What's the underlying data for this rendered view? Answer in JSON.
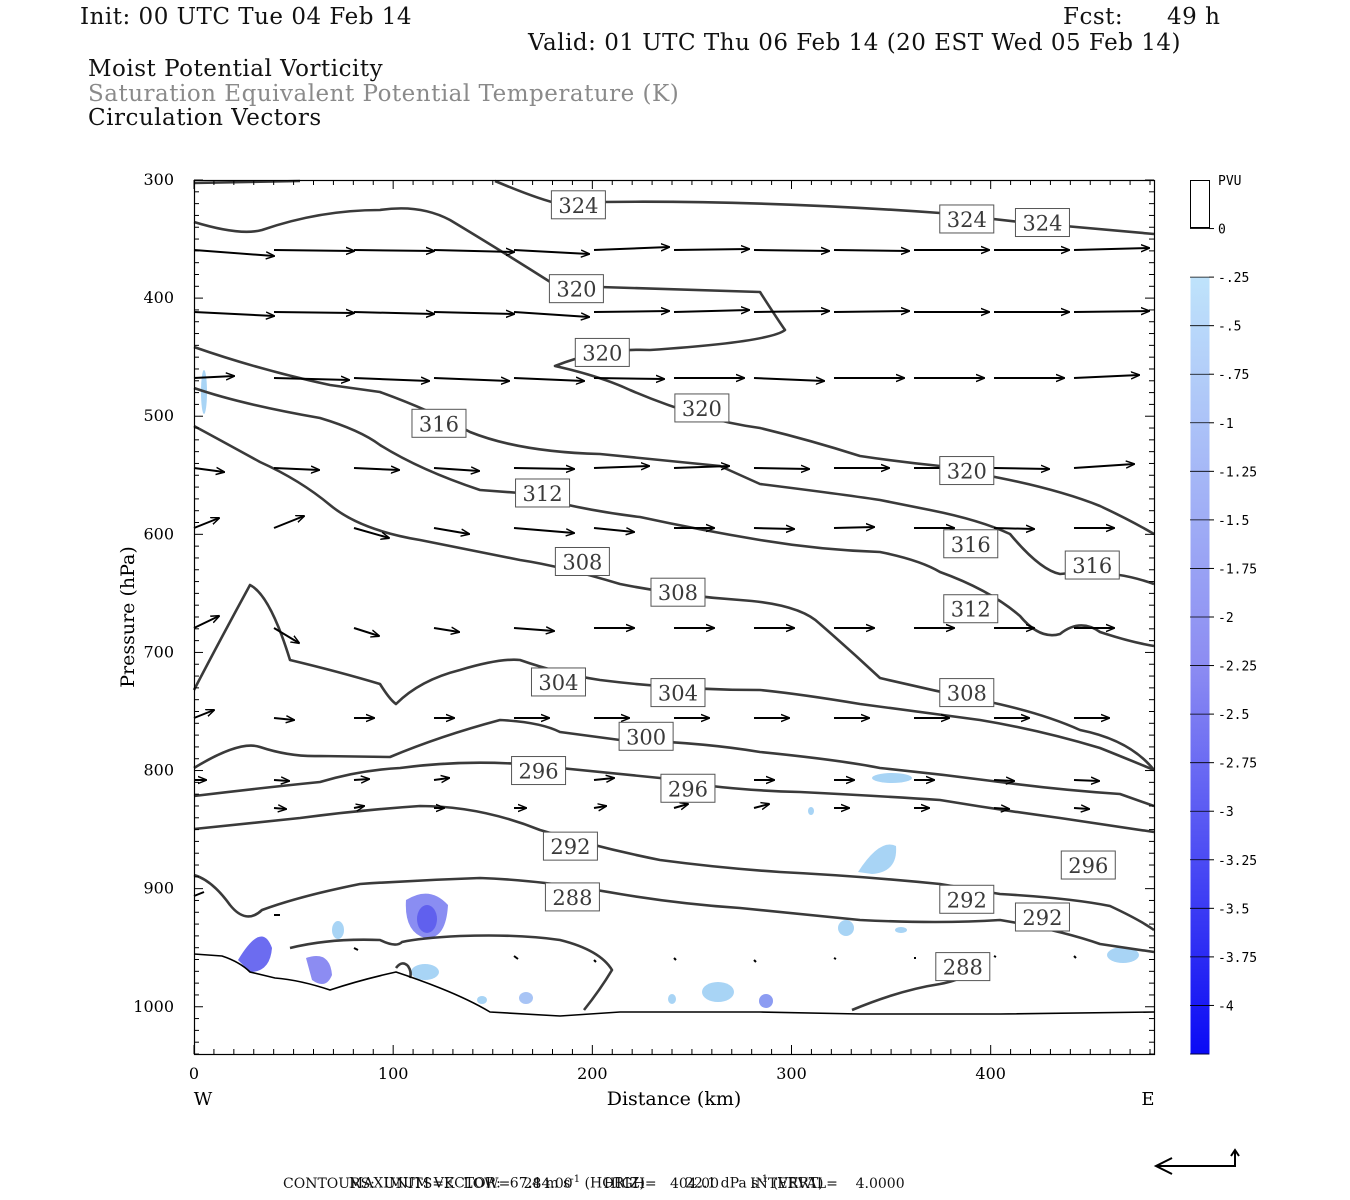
{
  "header": {
    "init": "Init: 00 UTC Tue 04 Feb 14",
    "fcst_label": "Fcst:",
    "fcst_value": "49 h",
    "valid": "Valid: 01 UTC Thu 06 Feb 14 (20 EST Wed 05 Feb 14)",
    "field1": "Moist Potential Vorticity",
    "field2": "Saturation Equivalent Potential Temperature (K)",
    "field3": "Circulation Vectors"
  },
  "colors": {
    "contour": "#3a3a3a",
    "field2_text": "#8a8a8a",
    "shade_light": "#a8d4f5",
    "shade_dark": "#3d3ef0"
  },
  "chart_data": {
    "type": "contour-cross-section",
    "xlabel": "Distance (km)",
    "ylabel": "Pressure (hPa)",
    "xlim": [
      0,
      482
    ],
    "ylim_hPa": [
      1040,
      300
    ],
    "x_ticks": [
      0,
      100,
      200,
      300,
      400
    ],
    "y_ticks": [
      300,
      400,
      500,
      600,
      700,
      800,
      900,
      1000
    ],
    "x_end_labels": {
      "left": "W",
      "right": "E"
    },
    "colorbar": {
      "unit": "PVU",
      "levels": [
        "0",
        "-.25",
        "-.5",
        "-.75",
        "-1",
        "-1.25",
        "-1.5",
        "-1.75",
        "-2",
        "-2.25",
        "-2.5",
        "-2.75",
        "-3",
        "-3.25",
        "-3.5",
        "-3.75",
        "-4"
      ]
    },
    "contour_labels": [
      {
        "value": "324",
        "x": 193,
        "p": 321
      },
      {
        "value": "324",
        "x": 388,
        "p": 333
      },
      {
        "value": "324",
        "x": 426,
        "p": 336
      },
      {
        "value": "320",
        "x": 192,
        "p": 392
      },
      {
        "value": "320",
        "x": 205,
        "p": 446
      },
      {
        "value": "320",
        "x": 255,
        "p": 493
      },
      {
        "value": "320",
        "x": 388,
        "p": 546
      },
      {
        "value": "316",
        "x": 123,
        "p": 506
      },
      {
        "value": "316",
        "x": 390,
        "p": 608
      },
      {
        "value": "316",
        "x": 451,
        "p": 626
      },
      {
        "value": "312",
        "x": 175,
        "p": 565
      },
      {
        "value": "312",
        "x": 390,
        "p": 663
      },
      {
        "value": "308",
        "x": 195,
        "p": 623
      },
      {
        "value": "308",
        "x": 243,
        "p": 649
      },
      {
        "value": "308",
        "x": 388,
        "p": 734
      },
      {
        "value": "304",
        "x": 183,
        "p": 725
      },
      {
        "value": "304",
        "x": 243,
        "p": 734
      },
      {
        "value": "300",
        "x": 227,
        "p": 771
      },
      {
        "value": "296",
        "x": 173,
        "p": 800
      },
      {
        "value": "296",
        "x": 248,
        "p": 815
      },
      {
        "value": "296",
        "x": 449,
        "p": 880
      },
      {
        "value": "292",
        "x": 189,
        "p": 864
      },
      {
        "value": "292",
        "x": 388,
        "p": 909
      },
      {
        "value": "292",
        "x": 426,
        "p": 924
      },
      {
        "value": "288",
        "x": 190,
        "p": 907
      },
      {
        "value": "288",
        "x": 386,
        "p": 966
      }
    ]
  },
  "footer": {
    "max_vector_label": "MAXIMUM VECTOR:",
    "horiz_value": "67.4",
    "horiz_unit": "m s",
    "sup": "-1",
    "horiz_tag": "(HORIZ)",
    "vert_value": "22.1",
    "vert_unit": "dPa s",
    "vert_tag": "(VERT)",
    "contours_line": "CONTOURS:  UNITS=K  LOW=   284.00       HIGH=   404.00       INTERVAL=    4.0000"
  }
}
